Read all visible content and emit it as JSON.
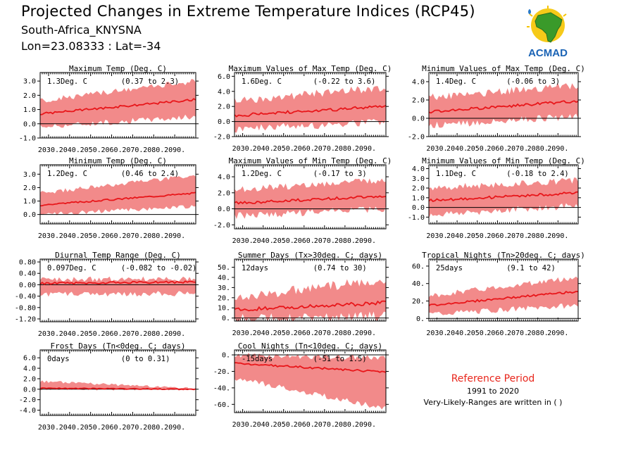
{
  "header": {
    "title": "Projected Changes in Extreme Temperature Indices (RCP45)",
    "location": "South-Africa_KNYSNA",
    "coords": "Lon=23.08333 : Lat=-34"
  },
  "logo": {
    "text": "ACMAD",
    "icon": "africa-map-sun-icon"
  },
  "reference": {
    "title": "Reference Period",
    "period": "1991 to 2020",
    "note": "Very-Likely-Ranges are written in ( )"
  },
  "colors": {
    "band": "#f28a8a",
    "line": "#e8161a",
    "zero": "#000000"
  },
  "chart_data": [
    {
      "id": "txx-mean",
      "type": "area",
      "title": "Maximum Temp (Deg. C)",
      "value_text": "1.3Deg. C",
      "range_text": "(0.37 to 2.3)",
      "ylim": [
        -1.0,
        3.6
      ],
      "yticks": [
        "-1.0",
        "0.0",
        "1.0",
        "2.0",
        "3.0"
      ],
      "ytick_values": [
        -1,
        0,
        1,
        2,
        3
      ],
      "xticks": [
        "2030.",
        "2040.",
        "2050.",
        "2060.",
        "2070.",
        "2080.",
        "2090."
      ],
      "x_start": 2026,
      "x_end": 2100,
      "median": [
        0.7,
        1.7
      ],
      "low": [
        -0.2,
        0.5
      ],
      "high": [
        1.6,
        3.0
      ],
      "noise": 0.25
    },
    {
      "id": "txx",
      "type": "area",
      "title": "Maximum Values of Max Temp (Deg. C)",
      "value_text": "1.6Deg. C",
      "range_text": "(-0.22 to 3.6)",
      "ylim": [
        -2.0,
        6.5
      ],
      "yticks": [
        "-2.0",
        "0.0",
        "2.0",
        "4.0",
        "6.0"
      ],
      "ytick_values": [
        -2,
        0,
        2,
        4,
        6
      ],
      "xticks": [
        "2030.",
        "2040.",
        "2050.",
        "2060.",
        "2070.",
        "2080.",
        "2090."
      ],
      "x_start": 2026,
      "x_end": 2100,
      "median": [
        0.8,
        2.0
      ],
      "low": [
        -1.0,
        0.0
      ],
      "high": [
        2.8,
        4.5
      ],
      "noise": 0.7
    },
    {
      "id": "txn",
      "type": "area",
      "title": "Minimum Values of Max Temp (Deg. C)",
      "value_text": "1.4Deg. C",
      "range_text": "(-0.06 to 3)",
      "ylim": [
        -2.0,
        5.0
      ],
      "yticks": [
        "-2.0",
        "0.0",
        "2.0",
        "4.0"
      ],
      "ytick_values": [
        -2,
        0,
        2,
        4
      ],
      "xticks": [
        "2030.",
        "2040.",
        "2050.",
        "2060.",
        "2070.",
        "2080.",
        "2090."
      ],
      "x_start": 2026,
      "x_end": 2100,
      "median": [
        0.7,
        1.9
      ],
      "low": [
        -0.8,
        0.2
      ],
      "high": [
        2.3,
        3.6
      ],
      "noise": 0.5
    },
    {
      "id": "tn-mean",
      "type": "area",
      "title": "Minimum Temp (Deg. C)",
      "value_text": "1.2Deg. C",
      "range_text": "(0.46 to 2.4)",
      "ylim": [
        -0.7,
        3.7
      ],
      "yticks": [
        "0.0",
        "1.0",
        "2.0",
        "3.0"
      ],
      "ytick_values": [
        0,
        1,
        2,
        3
      ],
      "xticks": [
        "2030.",
        "2040.",
        "2050.",
        "2060.",
        "2070.",
        "2080.",
        "2090."
      ],
      "x_start": 2026,
      "x_end": 2100,
      "median": [
        0.7,
        1.6
      ],
      "low": [
        0.0,
        0.6
      ],
      "high": [
        1.6,
        2.9
      ],
      "noise": 0.2
    },
    {
      "id": "tnx",
      "type": "area",
      "title": "Maximum Values of Min Temp (Deg. C)",
      "value_text": "1.2Deg. C",
      "range_text": "(-0.17 to 3)",
      "ylim": [
        -2.5,
        5.5
      ],
      "yticks": [
        "-2.0",
        "0.0",
        "2.0",
        "4.0"
      ],
      "ytick_values": [
        -2,
        0,
        2,
        4
      ],
      "xticks": [
        "2030.",
        "2040.",
        "2050.",
        "2060.",
        "2070.",
        "2080.",
        "2090."
      ],
      "x_start": 2026,
      "x_end": 2100,
      "median": [
        0.7,
        1.6
      ],
      "low": [
        -0.9,
        0.0
      ],
      "high": [
        2.4,
        3.6
      ],
      "noise": 0.55
    },
    {
      "id": "tnn",
      "type": "area",
      "title": "Minimum Values of Min Temp (Deg. C)",
      "value_text": "1.1Deg. C",
      "range_text": "(-0.18 to 2.4)",
      "ylim": [
        -1.7,
        4.4
      ],
      "yticks": [
        "-1.0",
        "0.0",
        "1.0",
        "2.0",
        "3.0",
        "4.0"
      ],
      "ytick_values": [
        -1,
        0,
        1,
        2,
        3,
        4
      ],
      "xticks": [
        "2030.",
        "2040.",
        "2050.",
        "2060.",
        "2070.",
        "2080.",
        "2090."
      ],
      "x_start": 2026,
      "x_end": 2100,
      "median": [
        0.7,
        1.5
      ],
      "low": [
        -0.8,
        0.2
      ],
      "high": [
        2.0,
        2.8
      ],
      "noise": 0.45
    },
    {
      "id": "dtr",
      "type": "area",
      "title": "Diurnal Temp Range (Deg. C)",
      "value_text": "0.097Deg. C",
      "range_text": "(-0.082 to -0.02)",
      "ylim": [
        -1.3,
        0.9
      ],
      "yticks": [
        "-1.20",
        "-0.80",
        "-0.40",
        "0.00",
        "0.40",
        "0.80"
      ],
      "ytick_values": [
        -1.2,
        -0.8,
        -0.4,
        0,
        0.4,
        0.8
      ],
      "xticks": [
        "2030.",
        "2040.",
        "2050.",
        "2060.",
        "2070.",
        "2080.",
        "2090."
      ],
      "x_start": 2026,
      "x_end": 2100,
      "median": [
        0.05,
        0.1
      ],
      "low": [
        -0.35,
        -0.3
      ],
      "high": [
        0.18,
        0.22
      ],
      "noise": 0.12
    },
    {
      "id": "su",
      "type": "area",
      "title": "Summer Days (Tx>30deg. C; days)",
      "value_text": "12days",
      "range_text": "(0.74 to 30)",
      "ylim": [
        -3,
        58
      ],
      "yticks": [
        "0.",
        "10.",
        "20.",
        "30.",
        "40.",
        "50."
      ],
      "ytick_values": [
        0,
        10,
        20,
        30,
        40,
        50
      ],
      "xticks": [
        "2030.",
        "2040.",
        "2050.",
        "2060.",
        "2070.",
        "2080.",
        "2090."
      ],
      "x_start": 2026,
      "x_end": 2100,
      "median": [
        8,
        15
      ],
      "low": [
        0,
        2
      ],
      "high": [
        20,
        38
      ],
      "noise": 6
    },
    {
      "id": "tr",
      "type": "area",
      "title": "Tropical Nights (Tn>20deg. C; days)",
      "value_text": "25days",
      "range_text": "(9.1 to 42)",
      "ylim": [
        -3,
        68
      ],
      "yticks": [
        "0.",
        "20.",
        "40.",
        "60."
      ],
      "ytick_values": [
        0,
        20,
        40,
        60
      ],
      "xticks": [
        "2030.",
        "2040.",
        "2050.",
        "2060.",
        "2070.",
        "2080.",
        "2090."
      ],
      "x_start": 2026,
      "x_end": 2100,
      "median": [
        15,
        31
      ],
      "low": [
        5,
        15
      ],
      "high": [
        26,
        47
      ],
      "noise": 4
    },
    {
      "id": "fd",
      "type": "area",
      "title": "Frost Days (Tn<0deg. C; days)",
      "value_text": "0days",
      "range_text": "(0 to 0.31)",
      "ylim": [
        -5,
        7.5
      ],
      "yticks": [
        "-4.0",
        "-2.0",
        "0.0",
        "2.0",
        "4.0",
        "6.0"
      ],
      "ytick_values": [
        -4,
        -2,
        0,
        2,
        4,
        6
      ],
      "xticks": [
        "2030.",
        "2040.",
        "2050.",
        "2060.",
        "2070.",
        "2080.",
        "2090."
      ],
      "x_start": 2026,
      "x_end": 2100,
      "median": [
        0.2,
        0.0
      ],
      "low": [
        0,
        0
      ],
      "high": [
        1.5,
        0.1
      ],
      "noise": 0.3
    },
    {
      "id": "tn10",
      "type": "area",
      "title": "Cool Nights (Tn<10deg. C; days)",
      "value_text": "-15days",
      "range_text": "(-51 to 1.5)",
      "ylim": [
        -70,
        6
      ],
      "yticks": [
        "0.",
        "-20.",
        "-40.",
        "-60."
      ],
      "ytick_values": [
        0,
        -20,
        -40,
        -60
      ],
      "xticks": [
        "2030.",
        "2040.",
        "2050.",
        "2060.",
        "2070.",
        "2080.",
        "2090."
      ],
      "x_start": 2026,
      "x_end": 2100,
      "median": [
        -10,
        -21
      ],
      "low": [
        -28,
        -65
      ],
      "high": [
        0,
        -4
      ],
      "noise": 4
    }
  ]
}
